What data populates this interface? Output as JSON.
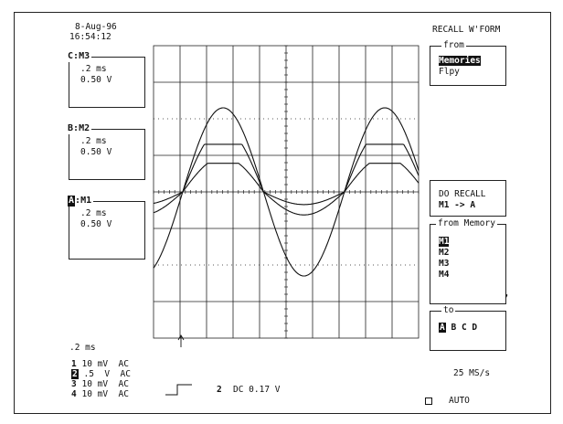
{
  "header": {
    "date": "8-Aug-96",
    "time": "16:54:12"
  },
  "channels": [
    {
      "id": "C",
      "source": "M3",
      "timebase": ".2 ms",
      "volts": "0.50 V",
      "highlight": false
    },
    {
      "id": "B",
      "source": "M2",
      "timebase": ".2 ms",
      "volts": "0.50 V",
      "highlight": false
    },
    {
      "id": "A",
      "source": "M1",
      "timebase": ".2 ms",
      "volts": "0.50 V",
      "highlight": true
    }
  ],
  "menu": {
    "title": "RECALL W'FORM",
    "from_label": "from",
    "from_options": [
      "Memories",
      "Flpy"
    ],
    "from_selected": "Memories",
    "do_recall_label": "DO RECALL",
    "do_recall_value": "M1 -> A",
    "from_memory_label": "from Memory",
    "memories": [
      "M1",
      "M2",
      "M3",
      "M4"
    ],
    "memory_selected": "M1",
    "to_label": "to",
    "to_targets": [
      "A",
      "B",
      "C",
      "D"
    ],
    "to_selected": "A"
  },
  "footer": {
    "timebase": ".2 ms",
    "inputs": [
      {
        "num": "1",
        "scale": "10 mV",
        "coupling": "AC",
        "inverted": false
      },
      {
        "num": "2",
        "scale": ".5  V",
        "coupling": "AC",
        "inverted": true
      },
      {
        "num": "3",
        "scale": "10 mV",
        "coupling": "AC",
        "inverted": false
      },
      {
        "num": "4",
        "scale": "10 mV",
        "coupling": "AC",
        "inverted": false
      }
    ],
    "trigger_channel": "2",
    "trigger_info": "DC 0.17 V",
    "sample_rate": "25 MS/s",
    "trigger_mode": "AUTO"
  },
  "colors": {
    "trace": "#111111",
    "grid": "#222222",
    "background": "#ffffff"
  }
}
